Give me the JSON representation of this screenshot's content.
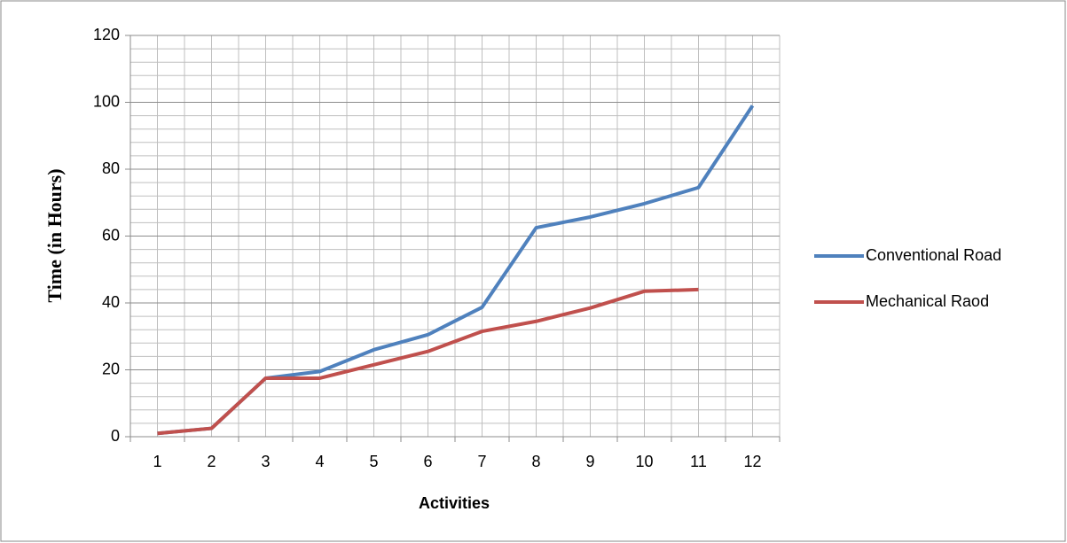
{
  "chart_data": {
    "type": "line",
    "x_label": "Activities",
    "y_label": "Time (in Hours)",
    "categories": [
      "1",
      "2",
      "3",
      "4",
      "5",
      "6",
      "7",
      "8",
      "9",
      "10",
      "11",
      "12"
    ],
    "series": [
      {
        "name": "Conventional Road",
        "color": "#4f81bd",
        "values": [
          1,
          2.5,
          17.5,
          19.5,
          26,
          30.5,
          38.7,
          62.5,
          65.7,
          69.7,
          74.5,
          99
        ]
      },
      {
        "name": "Mechanical Raod",
        "color": "#c0504d",
        "values": [
          1,
          2.5,
          17.5,
          17.5,
          21.5,
          25.5,
          31.5,
          34.5,
          38.5,
          43.5,
          44,
          null
        ]
      }
    ],
    "ylim": [
      0,
      120
    ],
    "yticks": [
      0,
      20,
      40,
      60,
      80,
      100,
      120
    ],
    "grid": true,
    "legend": "right"
  }
}
